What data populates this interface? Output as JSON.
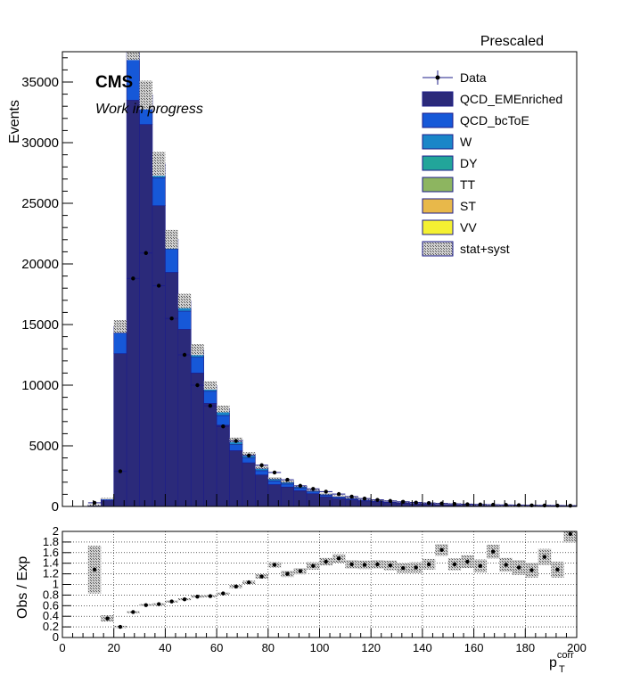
{
  "chart_data": [
    {
      "type": "bar",
      "stacked": true,
      "title": "Prescaled",
      "experiment_label": "CMS",
      "status_label": "Work in progress",
      "ylabel": "Events",
      "xlabel": "",
      "xlim": [
        0,
        200
      ],
      "ylim": [
        0,
        37500
      ],
      "bin_edges": [
        0,
        5,
        10,
        15,
        20,
        25,
        30,
        35,
        40,
        45,
        50,
        55,
        60,
        65,
        70,
        75,
        80,
        85,
        90,
        95,
        100,
        105,
        110,
        115,
        120,
        125,
        130,
        135,
        140,
        145,
        150,
        155,
        160,
        165,
        170,
        175,
        180,
        185,
        190,
        195,
        200
      ],
      "yticks": [
        0,
        5000,
        10000,
        15000,
        20000,
        25000,
        30000,
        35000
      ],
      "series": [
        {
          "name": "QCD_EMEnriched",
          "color": "#2b2a7a",
          "values": [
            0,
            0,
            100,
            500,
            12600,
            33500,
            31500,
            24800,
            19300,
            14600,
            11000,
            8500,
            6700,
            4600,
            3600,
            2600,
            1800,
            1600,
            1300,
            1050,
            800,
            650,
            550,
            450,
            380,
            320,
            270,
            230,
            200,
            170,
            150,
            130,
            110,
            95,
            80,
            70,
            60,
            50,
            40,
            30
          ]
        },
        {
          "name": "QCD_bcToE",
          "color": "#1658d8",
          "values": [
            0,
            0,
            20,
            100,
            1700,
            3600,
            1800,
            2300,
            1900,
            1500,
            1300,
            1000,
            800,
            500,
            400,
            350,
            300,
            250,
            200,
            150,
            120,
            100,
            80,
            70,
            60,
            50,
            40,
            35,
            30,
            25,
            20,
            18,
            15,
            12,
            10,
            9,
            8,
            7,
            6,
            5
          ]
        },
        {
          "name": "W",
          "color": "#1a86c8",
          "values": [
            0,
            0,
            5,
            20,
            300,
            600,
            400,
            700,
            550,
            550,
            400,
            300,
            350,
            250,
            200,
            180,
            150,
            130,
            110,
            90,
            80,
            70,
            60,
            50,
            45,
            40,
            35,
            30,
            25,
            22,
            20,
            18,
            15,
            12,
            10,
            9,
            8,
            7,
            6,
            5
          ]
        },
        {
          "name": "DY",
          "color": "#22a59a",
          "values": [
            0,
            0,
            2,
            10,
            150,
            300,
            150,
            300,
            180,
            200,
            150,
            120,
            130,
            100,
            80,
            70,
            60,
            50,
            45,
            40,
            35,
            30,
            25,
            22,
            20,
            18,
            15,
            13,
            12,
            10,
            9,
            8,
            7,
            6,
            5,
            5,
            4,
            4,
            3,
            3
          ]
        },
        {
          "name": "TT",
          "color": "#8db560",
          "values": [
            0,
            0,
            1,
            5,
            60,
            100,
            50,
            100,
            70,
            60,
            50,
            40,
            40,
            30,
            25,
            22,
            20,
            18,
            16,
            14,
            12,
            10,
            9,
            8,
            7,
            6,
            6,
            5,
            5,
            4,
            4,
            3,
            3,
            3,
            2,
            2,
            2,
            2,
            1,
            1
          ]
        },
        {
          "name": "ST",
          "color": "#e8b84a",
          "values": [
            0,
            0,
            0,
            2,
            20,
            30,
            15,
            30,
            20,
            20,
            15,
            12,
            10,
            8,
            7,
            6,
            5,
            5,
            4,
            4,
            3,
            3,
            3,
            2,
            2,
            2,
            2,
            2,
            1,
            1,
            1,
            1,
            1,
            1,
            1,
            1,
            1,
            1,
            1,
            1
          ]
        },
        {
          "name": "VV",
          "color": "#f4f032",
          "values": [
            0,
            0,
            0,
            1,
            10,
            15,
            8,
            15,
            10,
            10,
            8,
            6,
            5,
            4,
            3,
            3,
            3,
            2,
            2,
            2,
            2,
            1,
            1,
            1,
            1,
            1,
            1,
            1,
            1,
            1,
            1,
            1,
            1,
            1,
            1,
            1,
            1,
            1,
            1,
            1
          ]
        }
      ],
      "band": {
        "name": "stat+syst",
        "rel_error": 0.035
      },
      "data": {
        "name": "Data",
        "x": [
          12.5,
          22.5,
          27.5,
          32.5,
          37.5,
          42.5,
          47.5,
          52.5,
          57.5,
          62.5,
          67.5,
          72.5,
          77.5,
          82.5,
          87.5,
          92.5,
          97.5,
          102.5,
          107.5,
          112.5,
          117.5,
          122.5,
          127.5,
          132.5,
          137.5,
          142.5,
          147.5,
          152.5,
          157.5,
          162.5,
          167.5,
          172.5,
          177.5,
          182.5,
          187.5,
          192.5,
          197.5
        ],
        "y": [
          300,
          2900,
          18800,
          20900,
          18200,
          15500,
          12500,
          10000,
          8300,
          6600,
          5400,
          4200,
          3400,
          2800,
          2200,
          1700,
          1450,
          1220,
          1020,
          810,
          650,
          540,
          450,
          380,
          320,
          280,
          240,
          210,
          180,
          160,
          140,
          120,
          105,
          90,
          80,
          70,
          60
        ]
      },
      "legend": {
        "position": "top-right",
        "entries": [
          "Data",
          "QCD_EMEnriched",
          "QCD_bcToE",
          "W",
          "DY",
          "TT",
          "ST",
          "VV",
          "stat+syst"
        ]
      }
    },
    {
      "type": "scatter",
      "ylabel": "Obs / Exp",
      "xlabel": "p_T^corr",
      "xlim": [
        0,
        200
      ],
      "ylim": [
        0,
        2
      ],
      "xticks": [
        0,
        20,
        40,
        60,
        80,
        100,
        120,
        140,
        160,
        180,
        200
      ],
      "yticks": [
        0,
        0.2,
        0.4,
        0.6,
        0.8,
        1,
        1.2,
        1.4,
        1.6,
        1.8,
        2
      ],
      "ytick_labels": [
        "0",
        "0.2",
        "0.4",
        "0.6",
        "0.8",
        "1",
        "1.2",
        "1.4",
        "1.6",
        "1.8",
        "2"
      ],
      "xtitle_base": "p",
      "xtitle_sub": "T",
      "xtitle_sup": "corr",
      "x": [
        12.5,
        17.5,
        22.5,
        27.5,
        32.5,
        37.5,
        42.5,
        47.5,
        52.5,
        57.5,
        62.5,
        67.5,
        72.5,
        77.5,
        82.5,
        87.5,
        92.5,
        97.5,
        102.5,
        107.5,
        112.5,
        117.5,
        122.5,
        127.5,
        132.5,
        137.5,
        142.5,
        147.5,
        152.5,
        157.5,
        162.5,
        167.5,
        172.5,
        177.5,
        182.5,
        187.5,
        192.5,
        197.5
      ],
      "y": [
        1.28,
        0.36,
        0.2,
        0.48,
        0.61,
        0.63,
        0.68,
        0.72,
        0.77,
        0.78,
        0.83,
        0.96,
        1.04,
        1.15,
        1.37,
        1.2,
        1.25,
        1.35,
        1.43,
        1.49,
        1.38,
        1.37,
        1.38,
        1.36,
        1.31,
        1.32,
        1.38,
        1.65,
        1.38,
        1.43,
        1.35,
        1.62,
        1.37,
        1.32,
        1.27,
        1.52,
        1.28,
        1.95
      ],
      "band_half": [
        0.45,
        0.06,
        0.02,
        0.02,
        0.02,
        0.02,
        0.02,
        0.02,
        0.02,
        0.02,
        0.02,
        0.03,
        0.03,
        0.04,
        0.05,
        0.06,
        0.06,
        0.07,
        0.07,
        0.08,
        0.08,
        0.08,
        0.08,
        0.09,
        0.09,
        0.1,
        0.1,
        0.11,
        0.11,
        0.12,
        0.12,
        0.13,
        0.13,
        0.14,
        0.14,
        0.15,
        0.15,
        0.16
      ]
    }
  ]
}
